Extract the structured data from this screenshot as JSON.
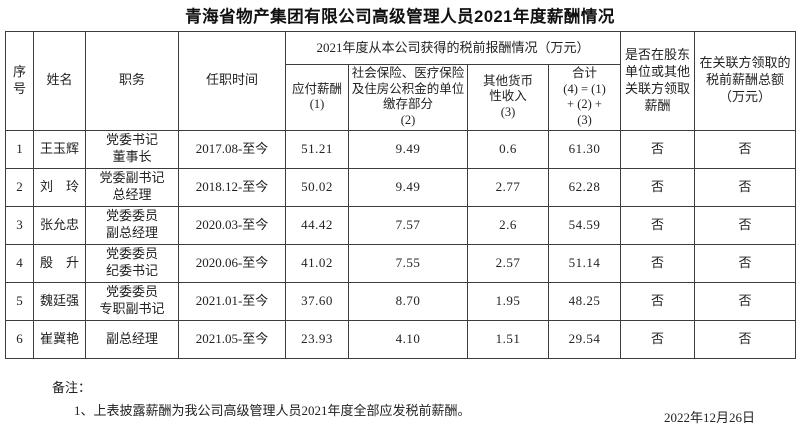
{
  "doc": {
    "title": "青海省物产集团有限公司高级管理人员2021年度薪酬情况",
    "date": "2022年12月26日"
  },
  "table": {
    "headers": {
      "seq": "序号",
      "name": "姓名",
      "position": "职务",
      "tenure": "任职时间",
      "group": "2021年度从本公司获得的税前报酬情况（万元）",
      "payable": "应付薪酬\n(1)",
      "insurance": "社会保险、医疗保险及住房公积金的单位缴存部分\n(2)",
      "other": "其他货币\n性收入\n(3)",
      "total": "合计\n(4) = (1)\n+ (2) +\n(3)",
      "shareholder_flag": "是否在股东单位或其他关联方领取薪酬",
      "related_amount": "在关联方领取的税前薪酬总额（万元）"
    },
    "rows": [
      {
        "seq": "1",
        "name": "王玉辉",
        "position": "党委书记\n董事长",
        "tenure": "2017.08-至今",
        "payable": "51.21",
        "insurance": "9.49",
        "other": "0.6",
        "total": "61.30",
        "shareholder_flag": "否",
        "related_amount": "否"
      },
      {
        "seq": "2",
        "name": "刘　玲",
        "position": "党委副书记\n总经理",
        "tenure": "2018.12-至今",
        "payable": "50.02",
        "insurance": "9.49",
        "other": "2.77",
        "total": "62.28",
        "shareholder_flag": "否",
        "related_amount": "否"
      },
      {
        "seq": "3",
        "name": "张允忠",
        "position": "党委委员\n副总经理",
        "tenure": "2020.03-至今",
        "payable": "44.42",
        "insurance": "7.57",
        "other": "2.6",
        "total": "54.59",
        "shareholder_flag": "否",
        "related_amount": "否"
      },
      {
        "seq": "4",
        "name": "殷　升",
        "position": "党委委员\n纪委书记",
        "tenure": "2020.06-至今",
        "payable": "41.02",
        "insurance": "7.55",
        "other": "2.57",
        "total": "51.14",
        "shareholder_flag": "否",
        "related_amount": "否"
      },
      {
        "seq": "5",
        "name": "魏廷强",
        "position": "党委委员\n专职副书记",
        "tenure": "2021.01-至今",
        "payable": "37.60",
        "insurance": "8.70",
        "other": "1.95",
        "total": "48.25",
        "shareholder_flag": "否",
        "related_amount": "否"
      },
      {
        "seq": "6",
        "name": "崔冀艳",
        "position": "副总经理",
        "tenure": "2021.05-至今",
        "payable": "23.93",
        "insurance": "4.10",
        "other": "1.51",
        "total": "29.54",
        "shareholder_flag": "否",
        "related_amount": "否"
      }
    ]
  },
  "notes": {
    "label": "备注：",
    "item1": "1、上表披露薪酬为我公司高级管理人员2021年度全部应发税前薪酬。"
  }
}
